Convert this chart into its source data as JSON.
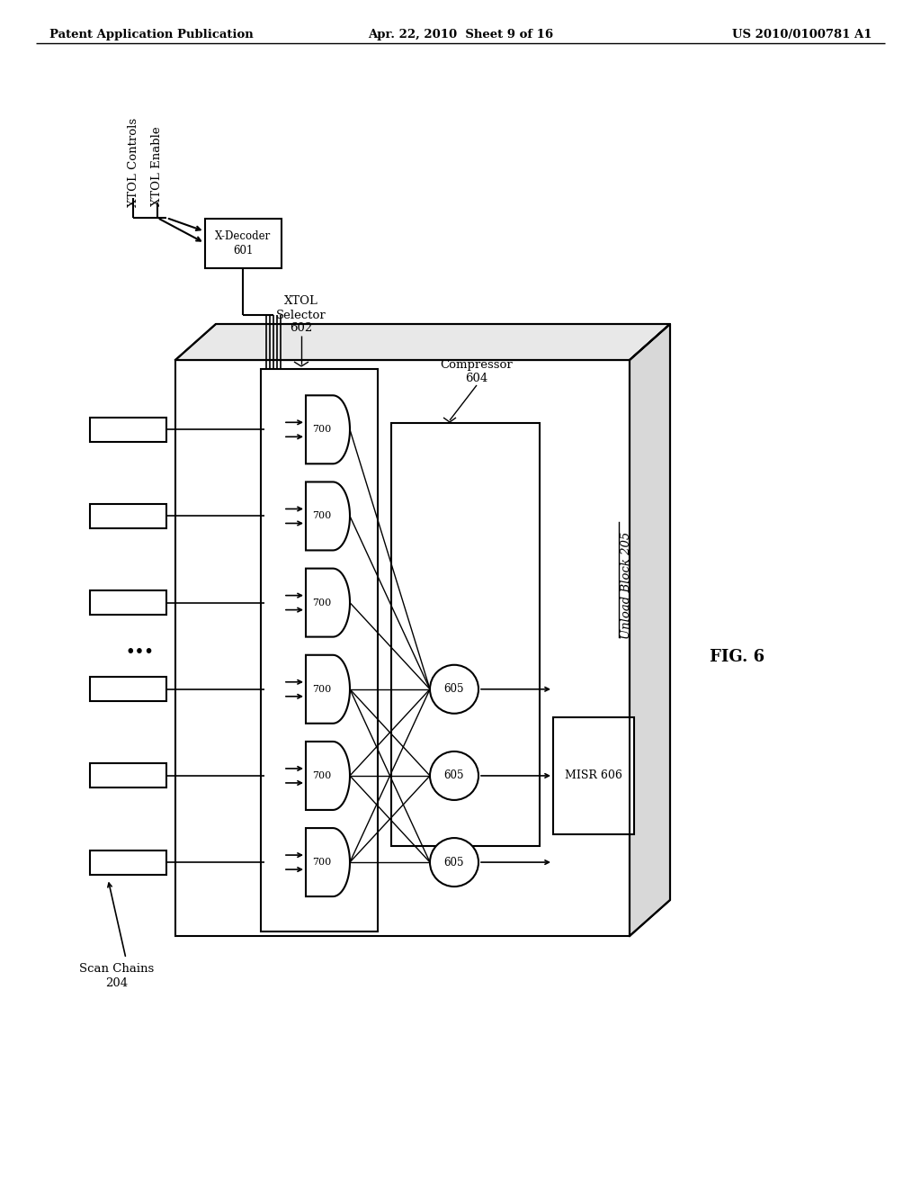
{
  "bg_color": "#ffffff",
  "line_color": "#000000",
  "header_left": "Patent Application Publication",
  "header_center": "Apr. 22, 2010  Sheet 9 of 16",
  "header_right": "US 2010/0100781 A1",
  "fig_label": "FIG. 6"
}
